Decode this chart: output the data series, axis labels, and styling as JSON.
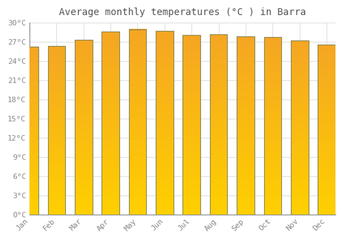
{
  "title": "Average monthly temperatures (°C ) in Barra",
  "months": [
    "Jan",
    "Feb",
    "Mar",
    "Apr",
    "May",
    "Jun",
    "Jul",
    "Aug",
    "Sep",
    "Oct",
    "Nov",
    "Dec"
  ],
  "values": [
    26.3,
    26.4,
    27.3,
    28.6,
    29.0,
    28.7,
    28.1,
    28.2,
    27.9,
    27.8,
    27.2,
    26.6
  ],
  "ylim": [
    0,
    30
  ],
  "ytick_step": 3,
  "background_color": "#ffffff",
  "plot_bg_color": "#ffffff",
  "grid_color": "#e0e0e0",
  "title_fontsize": 10,
  "tick_fontsize": 8,
  "bar_color_bottom": "#FFD000",
  "bar_color_top": "#F5A623",
  "bar_edge_color": "#888855",
  "bar_width": 0.65
}
